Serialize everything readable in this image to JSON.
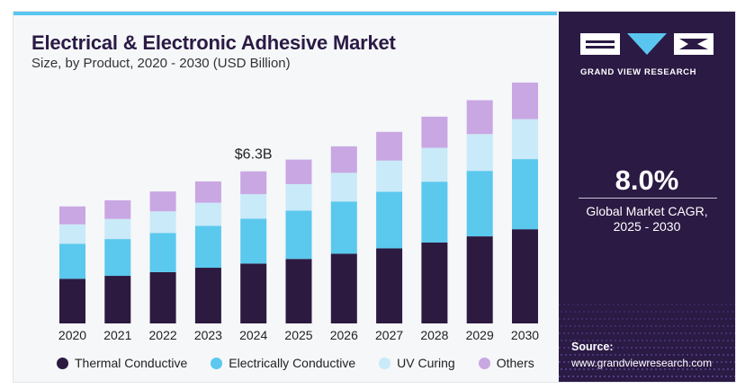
{
  "header": {
    "title": "Electrical & Electronic Adhesive Market",
    "subtitle": "Size, by Product, 2020 - 2030 (USD Billion)"
  },
  "chart_data": {
    "type": "bar",
    "stacked": true,
    "title": "Electrical & Electronic Adhesive Market",
    "subtitle": "Size, by Product, 2020 - 2030 (USD Billion)",
    "categories": [
      "2020",
      "2021",
      "2022",
      "2023",
      "2024",
      "2025",
      "2026",
      "2027",
      "2028",
      "2029",
      "2030"
    ],
    "series": [
      {
        "name": "Thermal Conductive",
        "color": "#2d1a40",
        "values": [
          1.82,
          1.94,
          2.09,
          2.27,
          2.44,
          2.63,
          2.84,
          3.06,
          3.3,
          3.55,
          3.84
        ]
      },
      {
        "name": "Electrically Conductive",
        "color": "#5bc8ee",
        "values": [
          1.43,
          1.5,
          1.6,
          1.71,
          1.83,
          1.97,
          2.13,
          2.31,
          2.48,
          2.67,
          2.86
        ]
      },
      {
        "name": "UV Curing",
        "color": "#c9eaf8",
        "values": [
          0.79,
          0.82,
          0.88,
          0.94,
          1.0,
          1.08,
          1.17,
          1.27,
          1.38,
          1.5,
          1.63
        ]
      },
      {
        "name": "Others",
        "color": "#c9a7e3",
        "values": [
          0.73,
          0.76,
          0.81,
          0.87,
          0.93,
          1.0,
          1.08,
          1.17,
          1.27,
          1.38,
          1.49
        ]
      }
    ],
    "annotations": [
      {
        "category": "2024",
        "text": "$6.3B"
      }
    ],
    "legend_position": "bottom",
    "grid": false,
    "ylim": [
      0,
      10.0
    ]
  },
  "legend": [
    {
      "label": "Thermal Conductive",
      "color": "#2d1a40"
    },
    {
      "label": "Electrically Conductive",
      "color": "#5bc8ee"
    },
    {
      "label": "UV Curing",
      "color": "#c9eaf8"
    },
    {
      "label": "Others",
      "color": "#c9a7e3"
    }
  ],
  "sidebar": {
    "brand": "GRAND VIEW RESEARCH",
    "cagr_value": "8.0%",
    "cagr_label_line1": "Global Market CAGR,",
    "cagr_label_line2": "2025 - 2030",
    "source_label": "Source:",
    "source_url": "www.grandviewresearch.com",
    "colors": {
      "background": "#2b1a44",
      "accent": "#5ac6ef"
    }
  }
}
